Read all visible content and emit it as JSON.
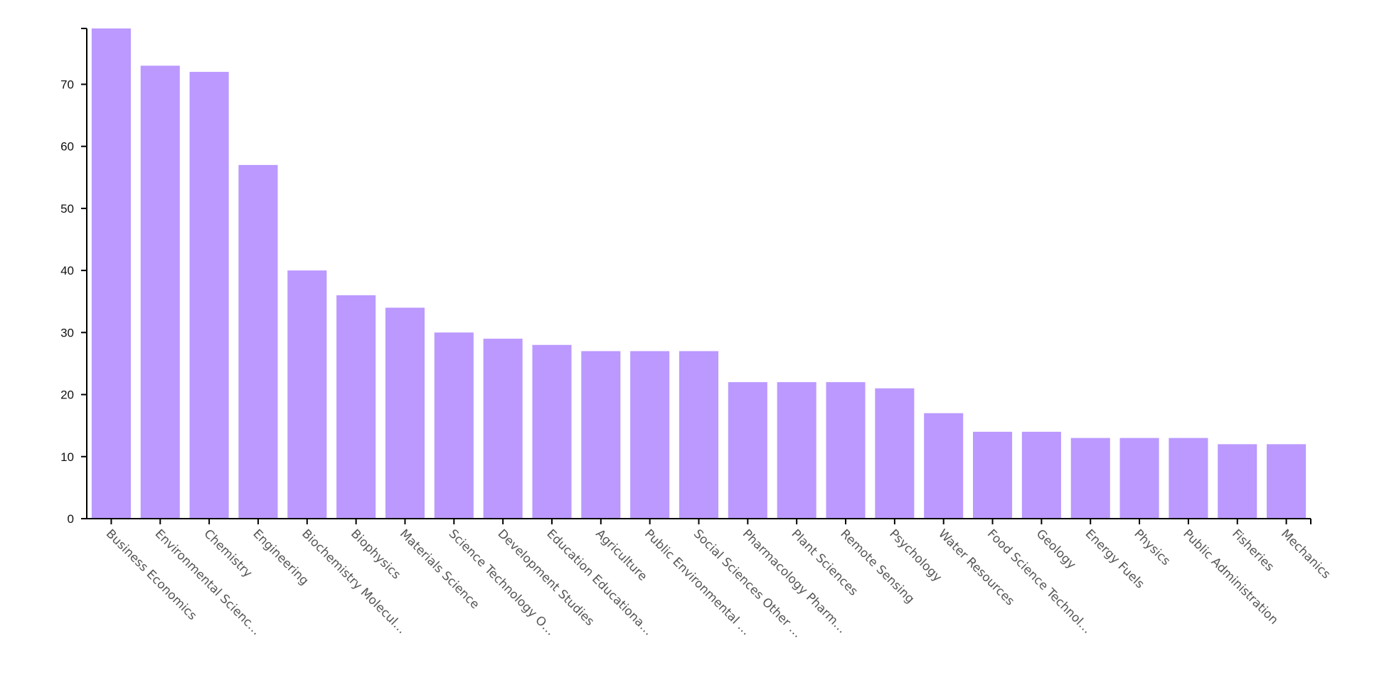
{
  "chart_data": {
    "type": "bar",
    "title": "",
    "xlabel": "",
    "ylabel": "",
    "ylim": [
      0,
      79
    ],
    "yticks": [
      0,
      10,
      20,
      30,
      40,
      50,
      60,
      70
    ],
    "grid": false,
    "bar_color": "#bb99ff",
    "categories": [
      "Business Economics",
      "Environmental Scienc…",
      "Chemistry",
      "Engineering",
      "Biochemistry Molecul…",
      "Biophysics",
      "Materials Science",
      "Science Technology O…",
      "Development Studies",
      "Education Educationa…",
      "Agriculture",
      "Public Environmental …",
      "Social Sciences Other …",
      "Pharmacology Pharm…",
      "Plant Sciences",
      "Remote Sensing",
      "Psychology",
      "Water Resources",
      "Food Science Technol…",
      "Geology",
      "Energy Fuels",
      "Physics",
      "Public Administration",
      "Fisheries",
      "Mechanics"
    ],
    "values": [
      79,
      73,
      72,
      57,
      40,
      36,
      34,
      30,
      29,
      28,
      27,
      27,
      27,
      22,
      22,
      22,
      21,
      17,
      14,
      14,
      13,
      13,
      13,
      12,
      12
    ]
  }
}
